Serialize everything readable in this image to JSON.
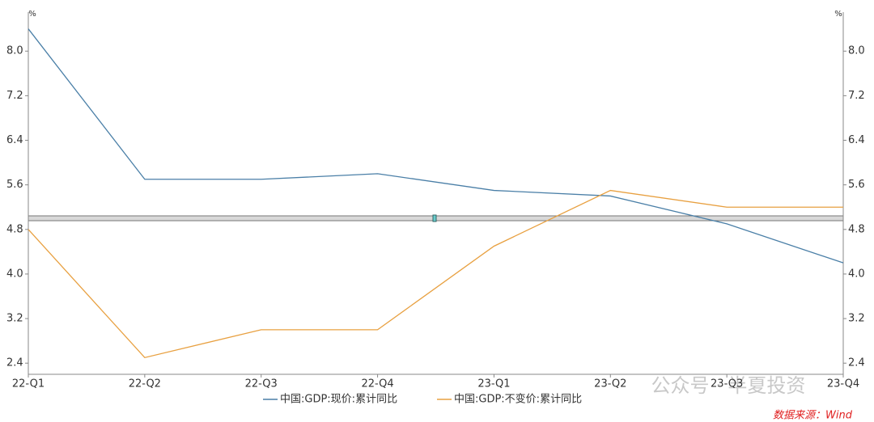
{
  "chart_data": {
    "type": "line",
    "unit": "%",
    "categories": [
      "22-Q1",
      "22-Q2",
      "22-Q3",
      "22-Q4",
      "23-Q1",
      "23-Q2",
      "23-Q3",
      "23-Q4"
    ],
    "series": [
      {
        "name": "中国:GDP:现价:累计同比",
        "color": "#4a7fa7",
        "values": [
          8.4,
          5.7,
          5.7,
          5.8,
          5.5,
          5.4,
          4.9,
          4.2
        ]
      },
      {
        "name": "中国:GDP:不变价:累计同比",
        "color": "#e8a040",
        "values": [
          4.8,
          2.5,
          3.0,
          3.0,
          4.5,
          5.5,
          5.2,
          5.2
        ]
      }
    ],
    "ylim": [
      2.2,
      8.7
    ],
    "yticks": [
      2.4,
      3.2,
      {
        "value": 4.0,
        "label": "4.0"
      },
      4.8,
      5.6,
      6.4,
      7.2,
      {
        "value": 8.0,
        "label": "8.0"
      }
    ],
    "grid": false,
    "watermark": "公众号 · 半夏投资",
    "source": "数据来源：Wind"
  }
}
